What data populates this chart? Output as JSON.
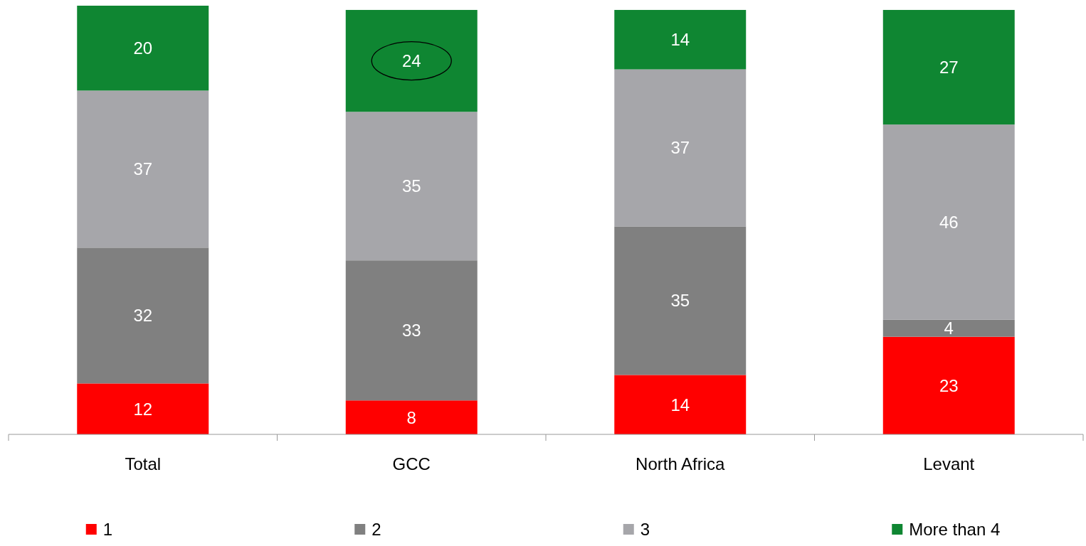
{
  "chart_data": {
    "type": "bar",
    "stacked": true,
    "categories": [
      "Total",
      "GCC",
      "North Africa",
      "Levant"
    ],
    "series": [
      {
        "name": "1",
        "color": "#ff0000",
        "values": [
          12,
          8,
          14,
          23
        ]
      },
      {
        "name": "2",
        "color": "#808080",
        "values": [
          32,
          33,
          35,
          4
        ]
      },
      {
        "name": "3",
        "color": "#a6a6aa",
        "values": [
          37,
          35,
          37,
          46
        ]
      },
      {
        "name": "More than 4",
        "color": "#0f8632",
        "values": [
          20,
          24,
          14,
          27
        ]
      }
    ],
    "data_labels": true,
    "legend": "bottom"
  }
}
